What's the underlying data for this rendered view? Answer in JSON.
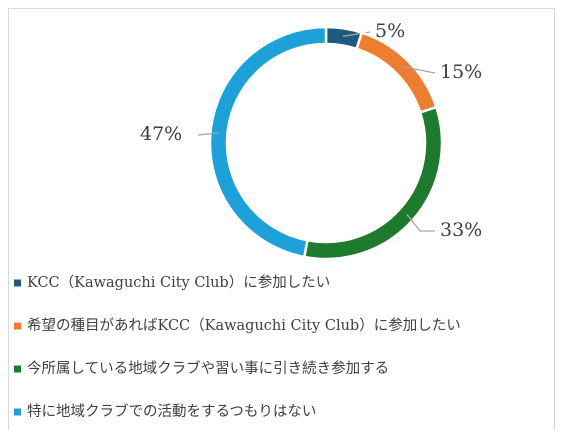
{
  "chart_data": {
    "type": "donut",
    "categories": [
      "KCC（Kawaguchi City Club）に参加したい",
      "希望の種目があればKCC（Kawaguchi City Club）に参加したい",
      "今所属している地域クラブや習い事に引き続き参加する",
      "特に地域クラブでの活動をするつもりはない"
    ],
    "values": [
      5,
      15,
      33,
      47
    ],
    "value_labels": [
      "5%",
      "15%",
      "33%",
      "47%"
    ],
    "colors": [
      "#1d5a7d",
      "#ed7d31",
      "#1e7a2c",
      "#1ea1d9"
    ],
    "legend": "bottom"
  }
}
